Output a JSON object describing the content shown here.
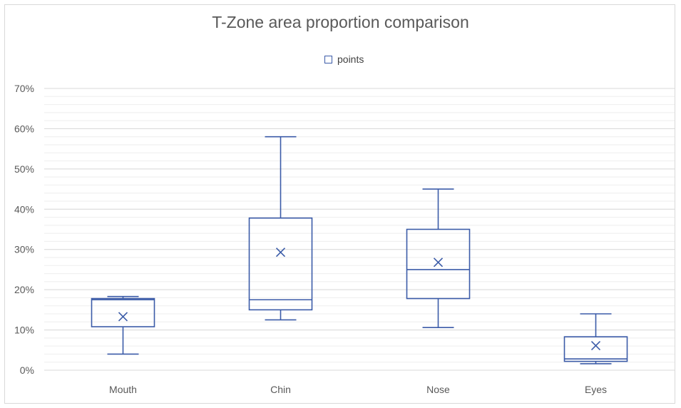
{
  "chart_data": {
    "type": "box",
    "title": "T-Zone area proportion comparison",
    "legend": {
      "label": "points",
      "position": "top"
    },
    "categories": [
      "Mouth",
      "Chin",
      "Nose",
      "Eyes"
    ],
    "ylim": [
      0,
      0.7
    ],
    "yticks": [
      0,
      0.1,
      0.2,
      0.3,
      0.4,
      0.5,
      0.6,
      0.7
    ],
    "ytick_labels": [
      "0%",
      "10%",
      "20%",
      "30%",
      "40%",
      "50%",
      "60%",
      "70%"
    ],
    "minor_step": 0.02,
    "grid": true,
    "boxes": [
      {
        "category": "Mouth",
        "min": 0.04,
        "q1": 0.108,
        "median": 0.175,
        "q3": 0.178,
        "max": 0.183,
        "mean": 0.133
      },
      {
        "category": "Chin",
        "min": 0.125,
        "q1": 0.15,
        "median": 0.175,
        "q3": 0.378,
        "max": 0.58,
        "mean": 0.293
      },
      {
        "category": "Nose",
        "min": 0.106,
        "q1": 0.178,
        "median": 0.25,
        "q3": 0.35,
        "max": 0.45,
        "mean": 0.268
      },
      {
        "category": "Eyes",
        "min": 0.016,
        "q1": 0.022,
        "median": 0.028,
        "q3": 0.083,
        "max": 0.14,
        "mean": 0.061
      }
    ],
    "colors": {
      "series": "#3b5ba8",
      "grid": "#d9d9d9",
      "grid_minor": "#eeeeee",
      "text": "#595959"
    }
  }
}
